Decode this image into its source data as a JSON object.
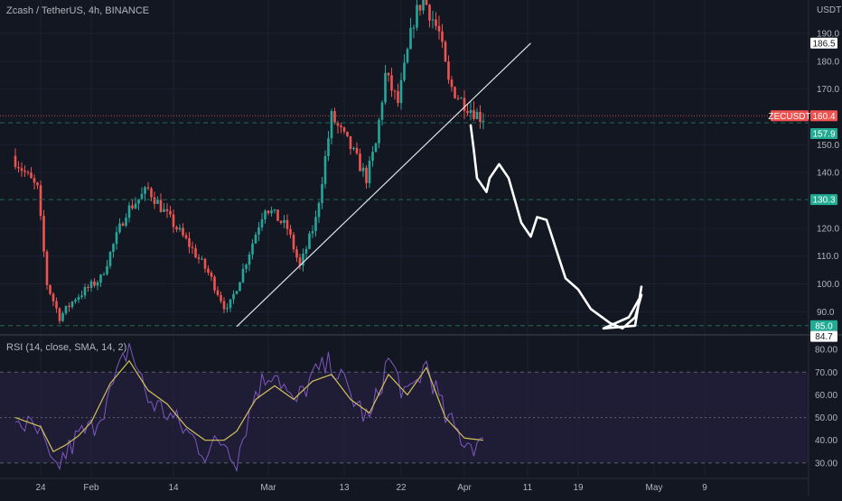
{
  "header": {
    "symbol_legend": "Zcash / TetherUS, 4h, BINANCE",
    "rsi_legend": "RSI (14, close, SMA, 14, 2)"
  },
  "price_axis": {
    "currency_label": "USDT",
    "ticks": [
      "190.0",
      "180.0",
      "170.0",
      "150.0",
      "140.0",
      "120.0",
      "110.0",
      "100.0",
      "90.0"
    ],
    "tick_values": [
      190,
      180,
      170,
      150,
      140,
      120,
      110,
      100,
      90
    ],
    "tags": [
      {
        "id": "price-tag-186",
        "text": "186.5",
        "value": 186.5,
        "style": "white"
      },
      {
        "id": "symbol-tag",
        "text": "ZECUSDT",
        "value": 160.4,
        "style": "red-label"
      },
      {
        "id": "price-tag-160",
        "text": "160.4",
        "value": 160.4,
        "style": "red"
      },
      {
        "id": "price-tag-157",
        "text": "157.9",
        "value": 157.9,
        "style": "green"
      },
      {
        "id": "price-tag-130",
        "text": "130.3",
        "value": 130.3,
        "style": "green"
      },
      {
        "id": "price-tag-85",
        "text": "85.0",
        "value": 85.0,
        "style": "green"
      },
      {
        "id": "price-tag-84",
        "text": "84.7",
        "value": 84.7,
        "style": "white"
      }
    ]
  },
  "rsi_axis": {
    "ticks": [
      "80.00",
      "70.00",
      "60.00",
      "50.00",
      "40.00",
      "30.00"
    ],
    "tick_values": [
      80,
      70,
      60,
      50,
      40,
      30
    ]
  },
  "time_axis": {
    "labels": [
      "24",
      "Feb",
      "14",
      "Mar",
      "13",
      "22",
      "Apr",
      "11",
      "19",
      "May",
      "9"
    ],
    "label_days": [
      -8,
      0,
      13,
      28,
      40,
      49,
      59,
      69,
      77,
      89,
      97
    ]
  },
  "colors": {
    "background": "#131722",
    "up": "#26a69a",
    "down": "#ef5350",
    "rsi_line": "#7e57c2",
    "rsi_ma": "#d4c25a",
    "rsi_band": "#2a2346",
    "hline": "#1e6b52",
    "red_line": "#ef5350",
    "trendline": "#e0e3eb",
    "drawing": "#ffffff"
  },
  "chart_data": [
    {
      "type": "candlestick",
      "title": "Zcash / TetherUS, 4h, BINANCE",
      "x_unit": "days since Feb 1",
      "ylim": [
        82,
        202
      ],
      "x_range": [
        -12,
        112
      ],
      "series": [
        {
          "name": "price path",
          "x": [
            -12,
            -8,
            -6.5,
            -4.5,
            -2,
            2,
            6,
            9.5,
            12,
            16,
            19,
            22,
            24.5,
            28,
            31.5,
            33.5,
            36,
            38.5,
            41.5,
            44,
            45.5,
            47,
            49,
            51.5,
            53,
            55.5,
            57,
            59,
            60.5,
            62
          ],
          "y": [
            146,
            134,
            100,
            88,
            95,
            102,
            126,
            134,
            126,
            114,
            104,
            90,
            105,
            128,
            120,
            106,
            123,
            160,
            149,
            138,
            150,
            175,
            165,
            195,
            203,
            190,
            172,
            166,
            163,
            160
          ]
        }
      ],
      "horizontal_levels": [
        157.9,
        130.3,
        85.0
      ],
      "current_price": 160.4,
      "trendline": {
        "x": [
          23,
          69.5
        ],
        "y": [
          84.7,
          186.5
        ]
      },
      "projection": {
        "x": [
          60,
          60.5,
          61,
          62.5,
          63,
          64.5,
          66,
          68,
          69.5,
          70.5,
          72,
          74,
          75,
          77,
          79,
          82,
          84,
          86,
          87,
          85,
          81,
          86,
          87
        ],
        "y": [
          157,
          148,
          138,
          133,
          138,
          143,
          138,
          122,
          117,
          124,
          123,
          109,
          102,
          98,
          91,
          86,
          84,
          88,
          96,
          88,
          84,
          85,
          99
        ]
      }
    },
    {
      "type": "line",
      "title": "RSI (14, close, SMA, 14, 2)",
      "x_unit": "days since Feb 1",
      "ylim": [
        24,
        86
      ],
      "bands": [
        30,
        50,
        70
      ],
      "series": [
        {
          "name": "RSI",
          "x": [
            -12,
            -8,
            -6,
            -4,
            -2,
            0,
            3,
            6,
            9,
            12,
            15,
            18,
            21,
            23,
            26,
            29,
            32,
            35,
            38,
            41,
            44,
            47,
            50,
            53,
            56,
            59,
            62
          ],
          "y": [
            50,
            42,
            26,
            34,
            42,
            45,
            60,
            82,
            58,
            52,
            44,
            35,
            40,
            32,
            62,
            72,
            55,
            68,
            74,
            60,
            48,
            76,
            58,
            74,
            50,
            40,
            37
          ]
        },
        {
          "name": "RSI-based MA",
          "x": [
            -12,
            -8,
            -6,
            -4,
            -2,
            0,
            3,
            6,
            9,
            12,
            15,
            18,
            21,
            23,
            26,
            29,
            32,
            35,
            38,
            41,
            44,
            47,
            50,
            53,
            56,
            59,
            62
          ],
          "y": [
            50,
            46,
            35,
            38,
            42,
            48,
            65,
            75,
            62,
            56,
            46,
            40,
            40,
            44,
            58,
            64,
            58,
            66,
            69,
            58,
            52,
            69,
            60,
            72,
            50,
            41,
            40
          ]
        }
      ]
    }
  ]
}
